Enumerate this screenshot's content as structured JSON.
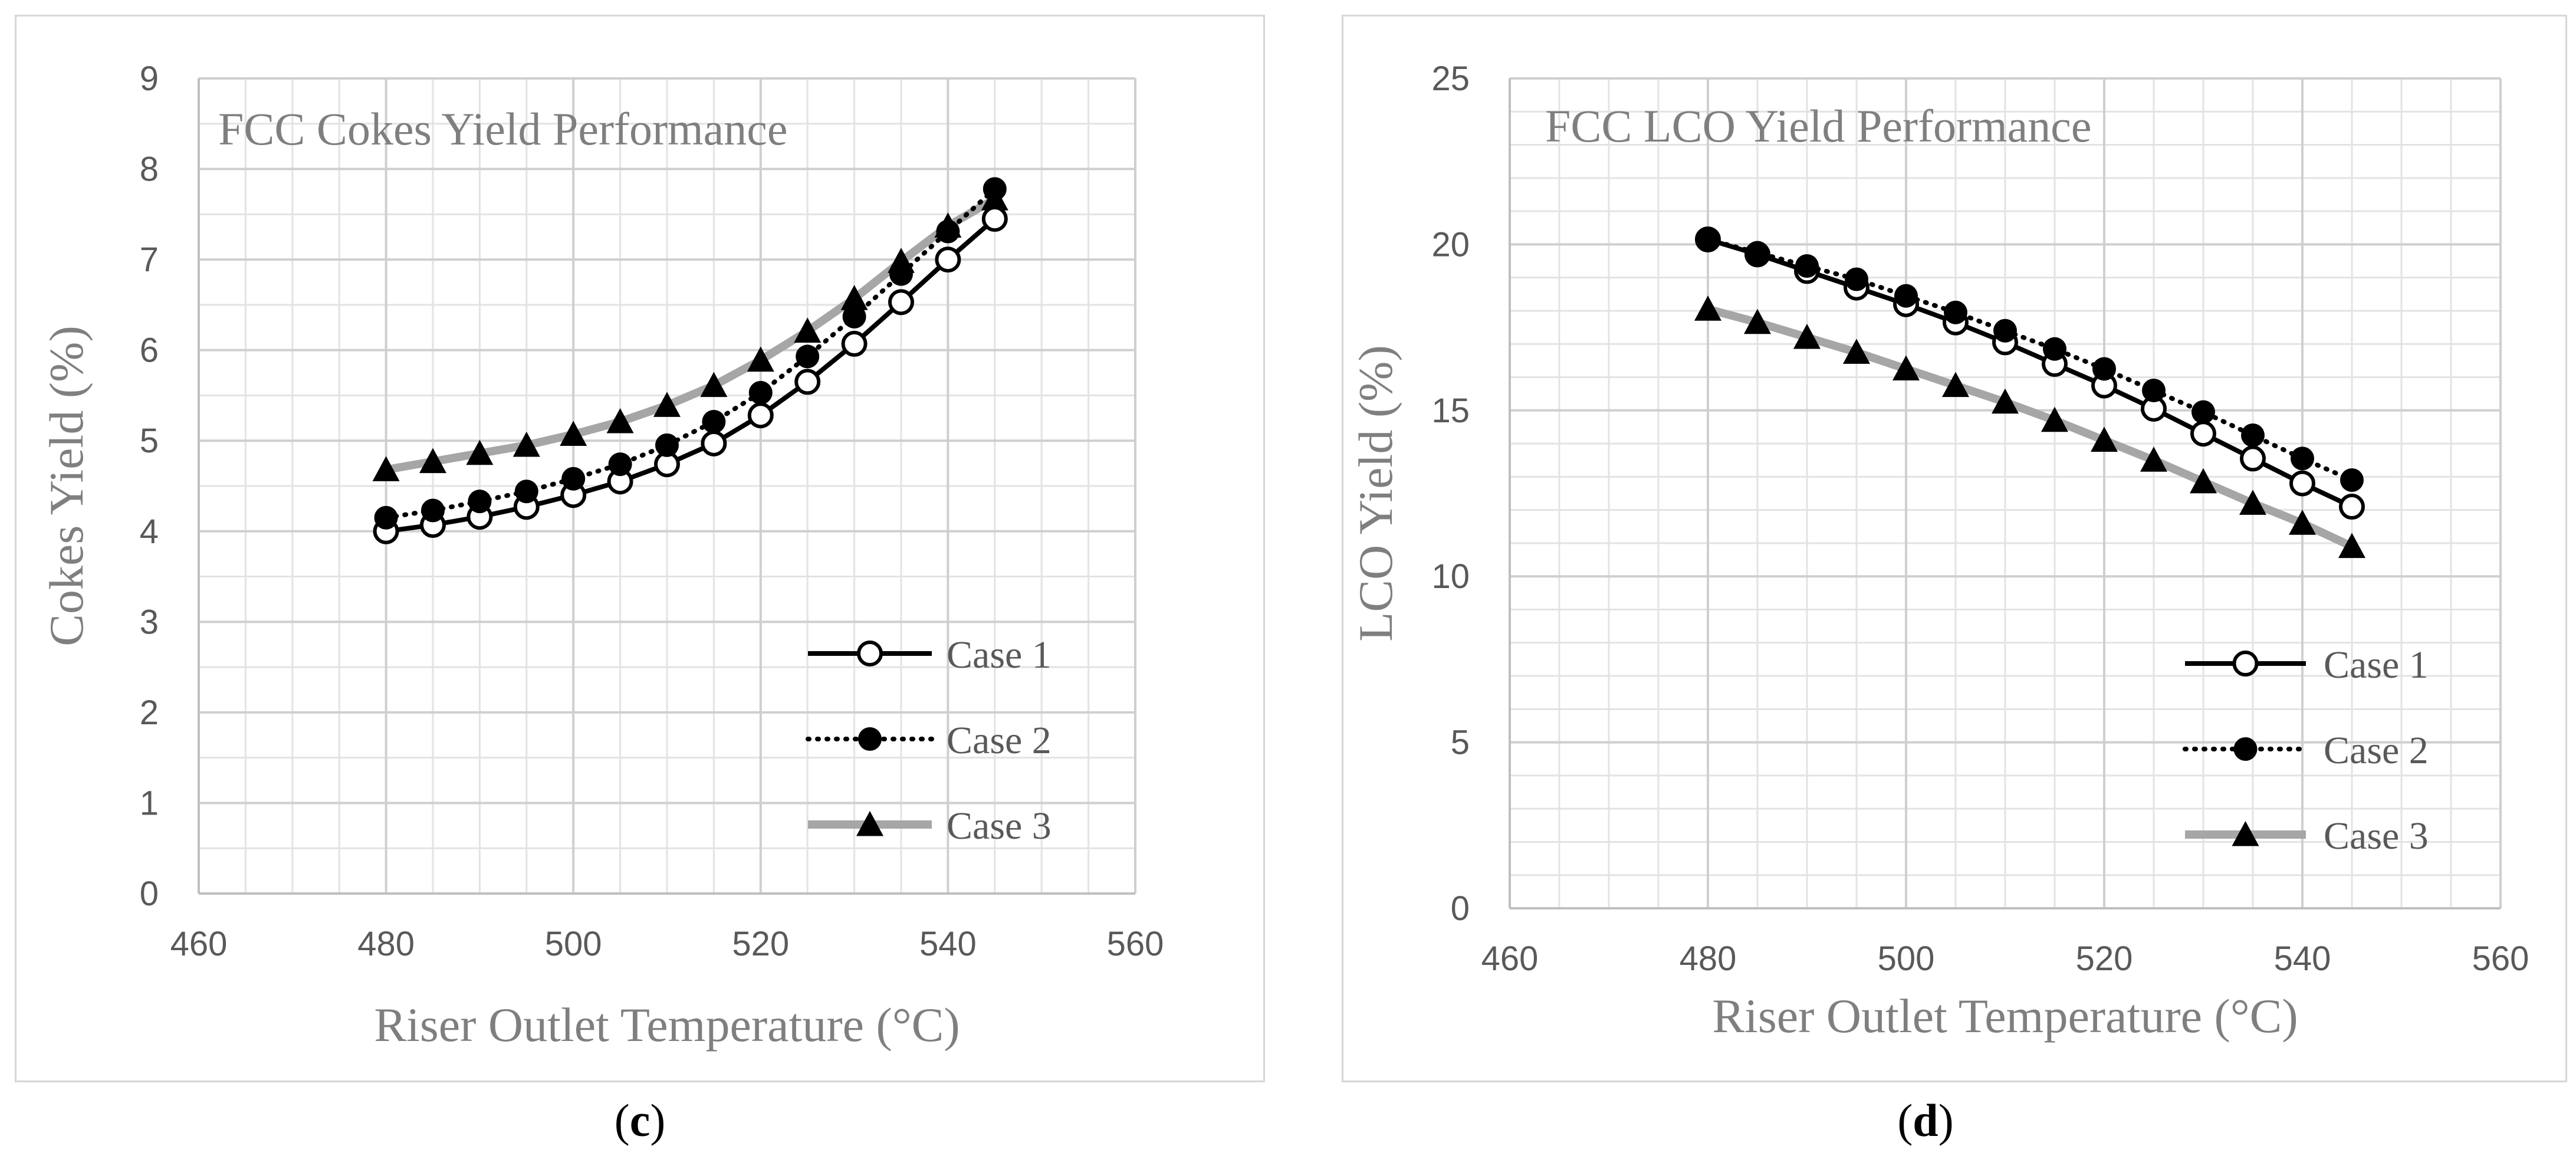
{
  "chart_data": [
    {
      "type": "line",
      "title": "FCC Cokes Yield Performance",
      "xlabel": "Riser Outlet Temperature (°C)",
      "ylabel": "Cokes Yield (%)",
      "xlim": [
        460,
        560
      ],
      "ylim": [
        0,
        9
      ],
      "xticks": [
        460,
        480,
        500,
        520,
        540,
        560
      ],
      "yticks": [
        0,
        1,
        2,
        3,
        4,
        5,
        6,
        7,
        8,
        9
      ],
      "x_minor_step": 5,
      "y_minor_step": 0.5,
      "grid": true,
      "legend_position": "bottom-right",
      "caption": "c",
      "x": [
        480,
        485,
        490,
        495,
        500,
        505,
        510,
        515,
        520,
        525,
        530,
        535,
        540,
        545
      ],
      "series": [
        {
          "name": "Case 1",
          "color": "#000000",
          "marker": "open-circle",
          "line": "solid",
          "values": [
            4.0,
            4.07,
            4.16,
            4.27,
            4.4,
            4.55,
            4.74,
            4.97,
            5.28,
            5.65,
            6.07,
            6.53,
            7.0,
            7.45
          ]
        },
        {
          "name": "Case 2",
          "color": "#000000",
          "marker": "filled-circle",
          "line": "dotted",
          "values": [
            4.15,
            4.23,
            4.33,
            4.44,
            4.58,
            4.74,
            4.95,
            5.21,
            5.53,
            5.93,
            6.37,
            6.84,
            7.31,
            7.78
          ]
        },
        {
          "name": "Case 3",
          "color": "#a6a6a6",
          "marker": "filled-triangle",
          "line": "solid",
          "values": [
            4.68,
            4.77,
            4.86,
            4.95,
            5.07,
            5.21,
            5.39,
            5.61,
            5.89,
            6.21,
            6.57,
            6.98,
            7.37,
            7.67
          ]
        }
      ]
    },
    {
      "type": "line",
      "title": "FCC LCO Yield Performance",
      "xlabel": "Riser Outlet Temperature (°C)",
      "ylabel": "LCO Yield (%)",
      "xlim": [
        460,
        560
      ],
      "ylim": [
        0,
        25
      ],
      "xticks": [
        460,
        480,
        500,
        520,
        540,
        560
      ],
      "yticks": [
        0,
        5,
        10,
        15,
        20,
        25
      ],
      "x_minor_step": 5,
      "y_minor_step": 1,
      "grid": true,
      "legend_position": "bottom-right",
      "caption": "d",
      "x": [
        480,
        485,
        490,
        495,
        500,
        505,
        510,
        515,
        520,
        525,
        530,
        535,
        540,
        545
      ],
      "series": [
        {
          "name": "Case 1",
          "color": "#000000",
          "marker": "open-circle",
          "line": "solid",
          "values": [
            20.15,
            19.7,
            19.2,
            18.7,
            18.2,
            17.65,
            17.05,
            16.4,
            15.75,
            15.05,
            14.3,
            13.55,
            12.8,
            12.1
          ]
        },
        {
          "name": "Case 2",
          "color": "#000000",
          "marker": "filled-circle",
          "line": "dotted",
          "values": [
            20.15,
            19.75,
            19.35,
            18.95,
            18.45,
            17.95,
            17.4,
            16.85,
            16.25,
            15.6,
            14.95,
            14.25,
            13.55,
            12.9
          ]
        },
        {
          "name": "Case 3",
          "color": "#a6a6a6",
          "marker": "filled-triangle",
          "line": "solid",
          "values": [
            18.05,
            17.65,
            17.2,
            16.75,
            16.25,
            15.75,
            15.25,
            14.7,
            14.1,
            13.5,
            12.85,
            12.2,
            11.6,
            10.9
          ]
        }
      ]
    }
  ]
}
